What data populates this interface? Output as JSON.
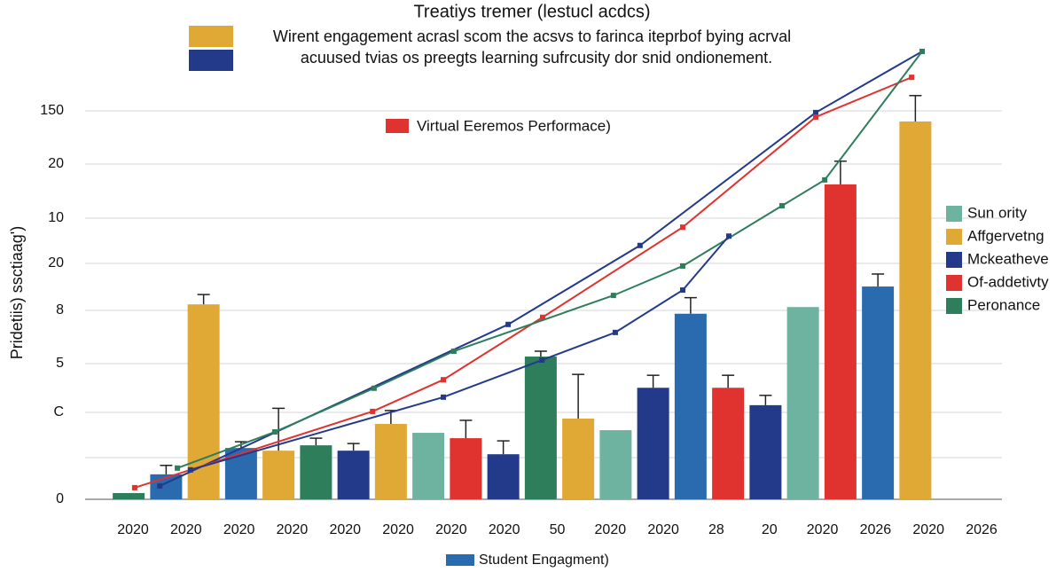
{
  "chart_data": {
    "type": "bar",
    "title": "Treatiys tremer (lestucl acdcs)",
    "subtitle_lines": [
      "Wirent engagement acrasl scom the acsvs to farinca iteprbof bying acrval",
      "acuused tvias os preegts learning sufrcusity dor snid ondionement."
    ],
    "top_legend_colors": [
      "#e0a835",
      "#233a8b"
    ],
    "y_label": "Pridetiis) ssctiaag')",
    "y_axis_labels": [
      "150",
      "20",
      "10",
      "20",
      "8",
      "5",
      "C",
      "0"
    ],
    "x_axis_labels": [
      "2020",
      "2020",
      "2020",
      "2020",
      "2020",
      "2020",
      "2020",
      "2020",
      "50",
      "2020",
      "2020",
      "28",
      "20",
      "2020",
      "2026",
      "2020",
      "2026"
    ],
    "inner_legend": {
      "name": "Virtual Eeremos Performace)",
      "color": "#e0322e"
    },
    "bottom_legend": {
      "name": "Student Engagment)",
      "color": "#2a6bb0"
    },
    "legend": [
      {
        "name": "Sun ority",
        "color": "#6db3a0"
      },
      {
        "name": "Affgervetng",
        "color": "#e0a835"
      },
      {
        "name": "Mckeatheve",
        "color": "#233a8b"
      },
      {
        "name": "Of-addetivty",
        "color": "#e0322e"
      },
      {
        "name": "Peronance",
        "color": "#2e7d5b"
      }
    ],
    "categories": [
      null,
      null,
      null,
      null,
      null,
      null,
      null,
      null,
      null,
      null,
      null,
      null,
      null,
      null,
      null,
      null,
      null,
      null,
      null,
      null,
      null,
      null
    ],
    "values": [
      1.4,
      5.6,
      43.7,
      11.5,
      10.9,
      12.1,
      10.9,
      16.9,
      14.9,
      13.7,
      10.1,
      32.0,
      18.1,
      15.5,
      25.0,
      41.6,
      25.0,
      21.1,
      43.1,
      70.6,
      47.7,
      84.7
    ],
    "errors": [
      null,
      2.0,
      2.2,
      1.4,
      9.5,
      1.6,
      1.6,
      3.0,
      null,
      4.0,
      3.0,
      1.2,
      9.9,
      null,
      2.8,
      3.6,
      2.8,
      2.2,
      null,
      5.2,
      2.8,
      5.8
    ],
    "colors": [
      "#2e7d5b",
      "#2a6bb0",
      "#e0a835",
      "#2a6bb0",
      "#e0a835",
      "#2e7d5b",
      "#233a8b",
      "#e0a835",
      "#6db3a0",
      "#e0322e",
      "#233a8b",
      "#2e7d5b",
      "#e0a835",
      "#6db3a0",
      "#233a8b",
      "#2a6bb0",
      "#e0322e",
      "#233a8b",
      "#6db3a0",
      "#e0322e",
      "#2a6bb0",
      "#e0a835"
    ],
    "lines": [
      {
        "color": "#233a8b",
        "x": [
          1.33,
          10.63,
          14.15,
          18.84,
          21.68
        ],
        "values": [
          3.0,
          39.2,
          56.9,
          86.7,
          100.4
        ]
      },
      {
        "color": "#e0322e",
        "x": [
          0.66,
          7.01,
          8.9,
          11.55,
          15.29,
          18.84,
          21.4
        ],
        "values": [
          2.6,
          19.7,
          26.8,
          40.8,
          61.0,
          85.7,
          94.6
        ]
      },
      {
        "color": "#2e7d5b",
        "x": [
          1.8,
          4.4,
          7.05,
          9.18,
          13.44,
          15.29,
          17.94,
          19.08,
          21.68
        ],
        "values": [
          7.0,
          15.1,
          24.9,
          33.2,
          45.7,
          52.3,
          65.8,
          71.6,
          100.4
        ]
      },
      {
        "color": "#233a8b",
        "x": [
          2.15,
          8.9,
          11.53,
          13.49,
          15.29,
          16.52
        ],
        "values": [
          6.6,
          22.9,
          31.2,
          37.4,
          46.9,
          59.0
        ]
      }
    ],
    "xlim": [
      0,
      24
    ],
    "ylim": [
      0,
      110
    ]
  }
}
